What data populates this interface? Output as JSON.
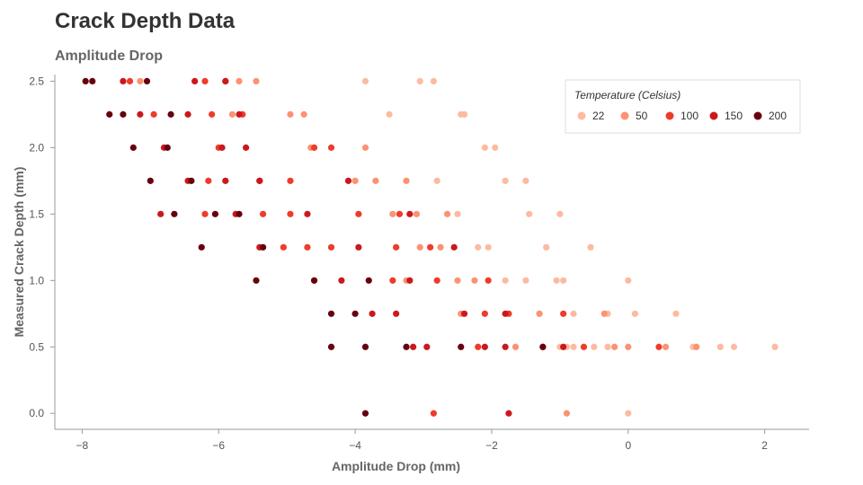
{
  "header": {
    "title": "Crack Depth Data",
    "subtitle": "Amplitude Drop"
  },
  "chart_data": {
    "type": "scatter",
    "title": "Crack Depth Data",
    "subtitle": "Amplitude Drop",
    "xlabel": "Amplitude Drop (mm)",
    "ylabel": "Measured Crack Depth (mm)",
    "xlim": [
      -8.4,
      2.65
    ],
    "ylim": [
      -0.12,
      2.55
    ],
    "x_ticks": [
      -8,
      -6,
      -4,
      -2,
      0,
      2
    ],
    "y_ticks": [
      0.0,
      0.5,
      1.0,
      1.5,
      2.0,
      2.5
    ],
    "x_tick_labels": [
      "−8",
      "−6",
      "−4",
      "−2",
      "0",
      "2"
    ],
    "y_tick_labels": [
      "0.0",
      "0.5",
      "1.0",
      "1.5",
      "2.0",
      "2.5"
    ],
    "grid": false,
    "legend": {
      "title": "Temperature (Celsius)",
      "placement": "top-right"
    },
    "series": [
      {
        "name": "22",
        "color": "#fcbba1",
        "points": [
          [
            -3.85,
            2.5
          ],
          [
            -3.05,
            2.5
          ],
          [
            -2.85,
            2.5
          ],
          [
            -3.5,
            2.25
          ],
          [
            -2.45,
            2.25
          ],
          [
            -2.4,
            2.25
          ],
          [
            -2.1,
            2.0
          ],
          [
            -1.95,
            2.0
          ],
          [
            -2.8,
            1.75
          ],
          [
            -1.8,
            1.75
          ],
          [
            -1.5,
            1.75
          ],
          [
            -2.5,
            1.5
          ],
          [
            -1.45,
            1.5
          ],
          [
            -1.0,
            1.5
          ],
          [
            -2.2,
            1.25
          ],
          [
            -2.05,
            1.25
          ],
          [
            -1.2,
            1.25
          ],
          [
            -0.55,
            1.25
          ],
          [
            -1.8,
            1.0
          ],
          [
            -1.5,
            1.0
          ],
          [
            -1.05,
            1.0
          ],
          [
            -0.95,
            1.0
          ],
          [
            0.0,
            1.0
          ],
          [
            -1.3,
            0.75
          ],
          [
            -0.8,
            0.75
          ],
          [
            -0.3,
            0.75
          ],
          [
            0.1,
            0.75
          ],
          [
            0.7,
            0.75
          ],
          [
            -1.0,
            0.5
          ],
          [
            -0.9,
            0.5
          ],
          [
            -0.8,
            0.5
          ],
          [
            -0.5,
            0.5
          ],
          [
            -0.3,
            0.5
          ],
          [
            0.95,
            0.5
          ],
          [
            1.55,
            0.5
          ],
          [
            1.35,
            0.5
          ],
          [
            2.15,
            0.5
          ],
          [
            0.0,
            0.0
          ]
        ]
      },
      {
        "name": "50",
        "color": "#fc9272",
        "points": [
          [
            -7.15,
            2.5
          ],
          [
            -5.7,
            2.5
          ],
          [
            -5.45,
            2.5
          ],
          [
            -5.8,
            2.25
          ],
          [
            -4.95,
            2.25
          ],
          [
            -4.75,
            2.25
          ],
          [
            -4.65,
            2.0
          ],
          [
            -3.85,
            2.0
          ],
          [
            -4.0,
            1.75
          ],
          [
            -3.7,
            1.75
          ],
          [
            -3.25,
            1.75
          ],
          [
            -3.45,
            1.5
          ],
          [
            -3.1,
            1.5
          ],
          [
            -2.65,
            1.5
          ],
          [
            -3.05,
            1.25
          ],
          [
            -2.75,
            1.25
          ],
          [
            -2.5,
            1.0
          ],
          [
            -2.25,
            1.0
          ],
          [
            -3.25,
            1.0
          ],
          [
            -0.35,
            0.75
          ],
          [
            -1.3,
            0.75
          ],
          [
            -2.45,
            0.75
          ],
          [
            -1.65,
            0.5
          ],
          [
            -0.2,
            0.5
          ],
          [
            0.0,
            0.5
          ],
          [
            0.55,
            0.5
          ],
          [
            1.0,
            0.5
          ],
          [
            -0.9,
            0.0
          ]
        ]
      },
      {
        "name": "100",
        "color": "#ef3b2c",
        "points": [
          [
            -6.2,
            2.5
          ],
          [
            -5.9,
            2.5
          ],
          [
            -7.3,
            2.5
          ],
          [
            -6.1,
            2.25
          ],
          [
            -6.95,
            2.25
          ],
          [
            -5.65,
            2.25
          ],
          [
            -6.0,
            2.0
          ],
          [
            -4.6,
            2.0
          ],
          [
            -4.35,
            2.0
          ],
          [
            -6.15,
            1.75
          ],
          [
            -5.4,
            1.75
          ],
          [
            -4.95,
            1.75
          ],
          [
            -6.2,
            1.5
          ],
          [
            -5.35,
            1.5
          ],
          [
            -4.95,
            1.5
          ],
          [
            -3.95,
            1.5
          ],
          [
            -3.35,
            1.5
          ],
          [
            -5.05,
            1.25
          ],
          [
            -4.7,
            1.25
          ],
          [
            -4.35,
            1.25
          ],
          [
            -3.4,
            1.25
          ],
          [
            -2.9,
            1.25
          ],
          [
            -4.6,
            1.0
          ],
          [
            -3.45,
            1.0
          ],
          [
            -2.8,
            1.0
          ],
          [
            -2.05,
            1.0
          ],
          [
            -2.1,
            0.75
          ],
          [
            -1.75,
            0.75
          ],
          [
            -0.95,
            0.75
          ],
          [
            -2.2,
            0.5
          ],
          [
            -1.25,
            0.5
          ],
          [
            -0.65,
            0.5
          ],
          [
            0.45,
            0.5
          ],
          [
            -2.85,
            0.0
          ]
        ]
      },
      {
        "name": "150",
        "color": "#cb181d",
        "points": [
          [
            -7.4,
            2.5
          ],
          [
            -6.35,
            2.5
          ],
          [
            -5.9,
            2.5
          ],
          [
            -7.15,
            2.25
          ],
          [
            -6.45,
            2.25
          ],
          [
            -5.7,
            2.25
          ],
          [
            -6.8,
            2.0
          ],
          [
            -5.95,
            2.0
          ],
          [
            -5.6,
            2.0
          ],
          [
            -6.45,
            1.75
          ],
          [
            -5.9,
            1.75
          ],
          [
            -5.4,
            1.75
          ],
          [
            -4.1,
            1.75
          ],
          [
            -6.85,
            1.5
          ],
          [
            -5.75,
            1.5
          ],
          [
            -4.7,
            1.5
          ],
          [
            -3.2,
            1.5
          ],
          [
            -5.4,
            1.25
          ],
          [
            -3.95,
            1.25
          ],
          [
            -2.55,
            1.25
          ],
          [
            -4.2,
            1.0
          ],
          [
            -3.2,
            1.0
          ],
          [
            -3.75,
            0.75
          ],
          [
            -3.4,
            0.75
          ],
          [
            -2.4,
            0.75
          ],
          [
            -1.8,
            0.75
          ],
          [
            -3.15,
            0.5
          ],
          [
            -2.95,
            0.5
          ],
          [
            -2.1,
            0.5
          ],
          [
            -1.8,
            0.5
          ],
          [
            -0.95,
            0.5
          ],
          [
            -1.75,
            0.0
          ]
        ]
      },
      {
        "name": "200",
        "color": "#67000d",
        "points": [
          [
            -7.95,
            2.5
          ],
          [
            -7.85,
            2.5
          ],
          [
            -7.05,
            2.5
          ],
          [
            -7.6,
            2.25
          ],
          [
            -7.4,
            2.25
          ],
          [
            -6.7,
            2.25
          ],
          [
            -7.25,
            2.0
          ],
          [
            -6.75,
            2.0
          ],
          [
            -7.0,
            1.75
          ],
          [
            -6.4,
            1.75
          ],
          [
            -6.65,
            1.5
          ],
          [
            -6.05,
            1.5
          ],
          [
            -5.7,
            1.5
          ],
          [
            -6.25,
            1.25
          ],
          [
            -5.35,
            1.25
          ],
          [
            -5.45,
            1.0
          ],
          [
            -4.6,
            1.0
          ],
          [
            -3.8,
            1.0
          ],
          [
            -4.35,
            0.75
          ],
          [
            -4.0,
            0.75
          ],
          [
            -4.35,
            0.5
          ],
          [
            -3.85,
            0.5
          ],
          [
            -3.25,
            0.5
          ],
          [
            -2.45,
            0.5
          ],
          [
            -1.25,
            0.5
          ],
          [
            -3.85,
            0.0
          ]
        ]
      }
    ]
  }
}
